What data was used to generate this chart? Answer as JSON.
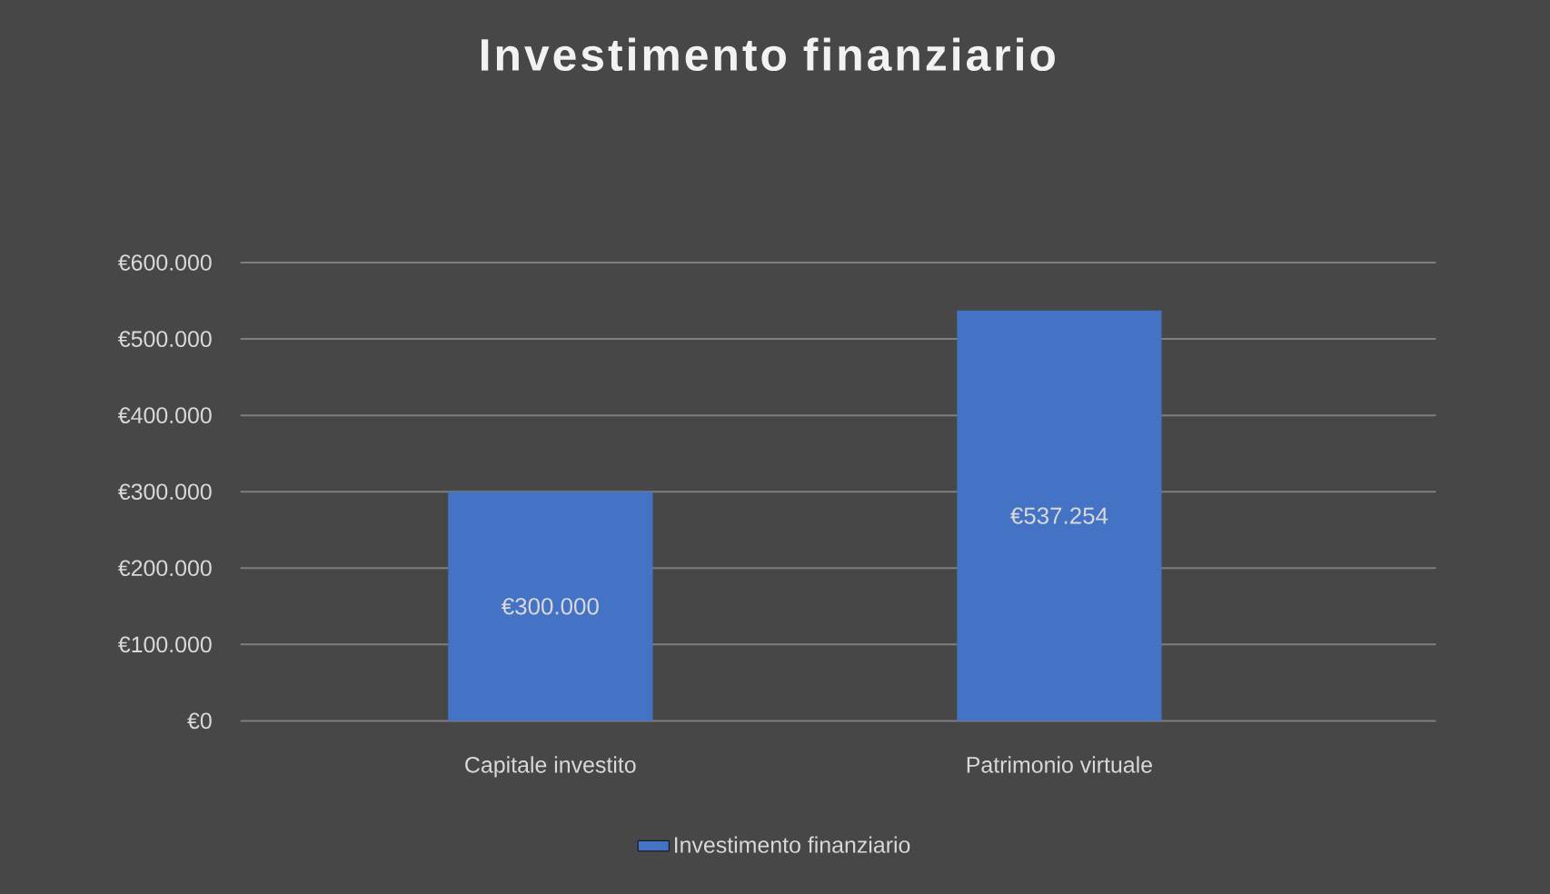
{
  "chart_data": {
    "type": "bar",
    "title": "Investimento finanziario",
    "categories": [
      "Capitale investito",
      "Patrimonio virtuale"
    ],
    "series": [
      {
        "name": "Investimento finanziario",
        "color": "#4472c4",
        "values": [
          300000,
          537254
        ],
        "value_labels": [
          "€300.000",
          "€537.254"
        ]
      }
    ],
    "ylim": [
      0,
      600000
    ],
    "yticks": [
      {
        "value": 0,
        "label": "€0"
      },
      {
        "value": 100000,
        "label": "€100.000"
      },
      {
        "value": 200000,
        "label": "€200.000"
      },
      {
        "value": 300000,
        "label": "€300.000"
      },
      {
        "value": 400000,
        "label": "€400.000"
      },
      {
        "value": 500000,
        "label": "€500.000"
      },
      {
        "value": 600000,
        "label": "€600.000"
      }
    ],
    "grid": "y",
    "legend": "bottom"
  }
}
